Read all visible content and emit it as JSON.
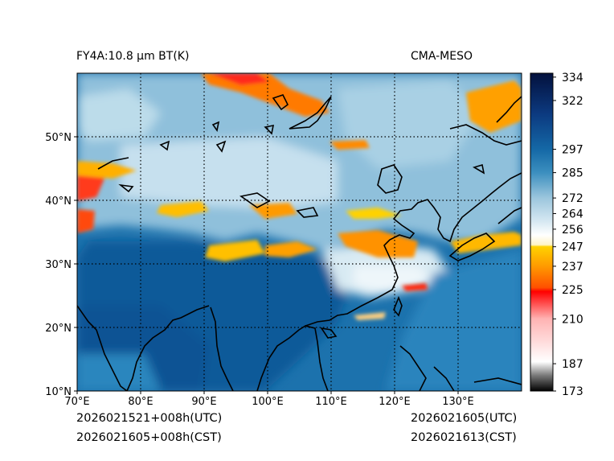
{
  "header": {
    "product": "FY4A:10.8 μm BT(K)",
    "model": "CMA-MESO"
  },
  "footer": {
    "left_line1": "2026021521+008h(UTC)",
    "left_line2": "2026021605+008h(CST)",
    "right_line1": "2026021605(UTC)",
    "right_line2": "2026021613(CST)"
  },
  "map": {
    "lon_labels": [
      "70°E",
      "80°E",
      "90°E",
      "100°E",
      "110°E",
      "120°E",
      "130°E"
    ],
    "lat_labels": [
      "50°N",
      "40°N",
      "30°N",
      "20°N",
      "10°N"
    ],
    "lon_range": [
      70,
      140
    ],
    "lat_range": [
      10,
      60
    ]
  },
  "colorbar": {
    "ticks": [
      "334",
      "322",
      "297",
      "285",
      "272",
      "264",
      "256",
      "247",
      "237",
      "225",
      "210",
      "187",
      "173"
    ],
    "range": [
      173,
      336
    ],
    "stops": [
      {
        "v": 173,
        "c": "#000000"
      },
      {
        "v": 181,
        "c": "#7a7a7a"
      },
      {
        "v": 188,
        "c": "#ffffff"
      },
      {
        "v": 210,
        "c": "#ffb3b3"
      },
      {
        "v": 224,
        "c": "#ff0000"
      },
      {
        "v": 226,
        "c": "#ff5000"
      },
      {
        "v": 237,
        "c": "#ff9a00"
      },
      {
        "v": 247,
        "c": "#ffd200"
      },
      {
        "v": 248,
        "c": "#fff5c8"
      },
      {
        "v": 253,
        "c": "#ffffff"
      },
      {
        "v": 260,
        "c": "#d6e8f2"
      },
      {
        "v": 272,
        "c": "#9cc6dd"
      },
      {
        "v": 285,
        "c": "#3c8fbf"
      },
      {
        "v": 297,
        "c": "#1468a6"
      },
      {
        "v": 315,
        "c": "#0c3a80"
      },
      {
        "v": 336,
        "c": "#03113d"
      }
    ]
  }
}
